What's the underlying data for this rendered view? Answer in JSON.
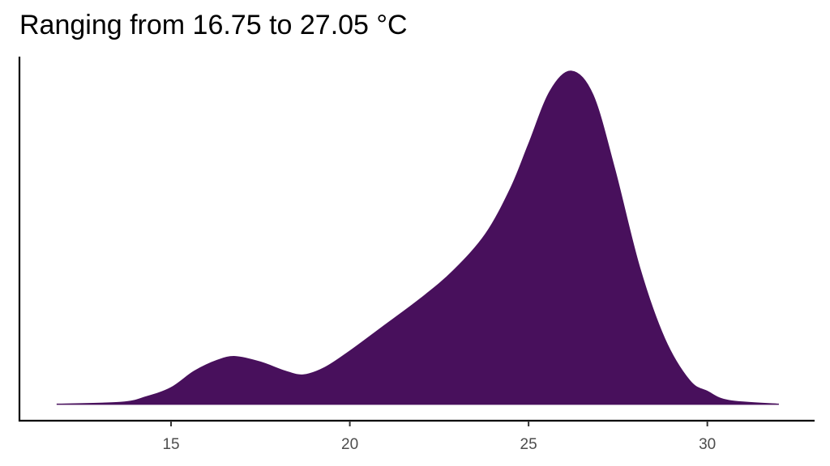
{
  "chart_data": {
    "type": "area",
    "title": "Ranging from 16.75 to 27.05 °C",
    "xlabel": "",
    "ylabel": "",
    "xlim": [
      10.76,
      33.0
    ],
    "ylim": [
      -0.009,
      0.19
    ],
    "x_ticks": [
      15,
      20,
      25,
      30
    ],
    "x_tick_labels": [
      "15",
      "20",
      "25",
      "30"
    ],
    "y_ticks": [],
    "grid": false,
    "legend": "none",
    "fill_color": "#48105C",
    "series": [
      {
        "x": [
          11.8,
          13.6,
          14.3,
          15.0,
          15.65,
          16.3,
          16.8,
          17.5,
          18.2,
          18.7,
          19.3,
          20.0,
          20.9,
          22.0,
          22.9,
          23.8,
          24.5,
          25.0,
          25.6,
          26.2,
          26.8,
          27.4,
          28.1,
          28.8,
          29.5,
          30.0,
          30.6,
          32.0
        ],
        "y": [
          0.0,
          0.001,
          0.004,
          0.009,
          0.018,
          0.024,
          0.026,
          0.023,
          0.018,
          0.016,
          0.02,
          0.029,
          0.042,
          0.058,
          0.073,
          0.093,
          0.118,
          0.142,
          0.171,
          0.182,
          0.169,
          0.129,
          0.075,
          0.036,
          0.013,
          0.007,
          0.002,
          0.0
        ]
      }
    ]
  }
}
